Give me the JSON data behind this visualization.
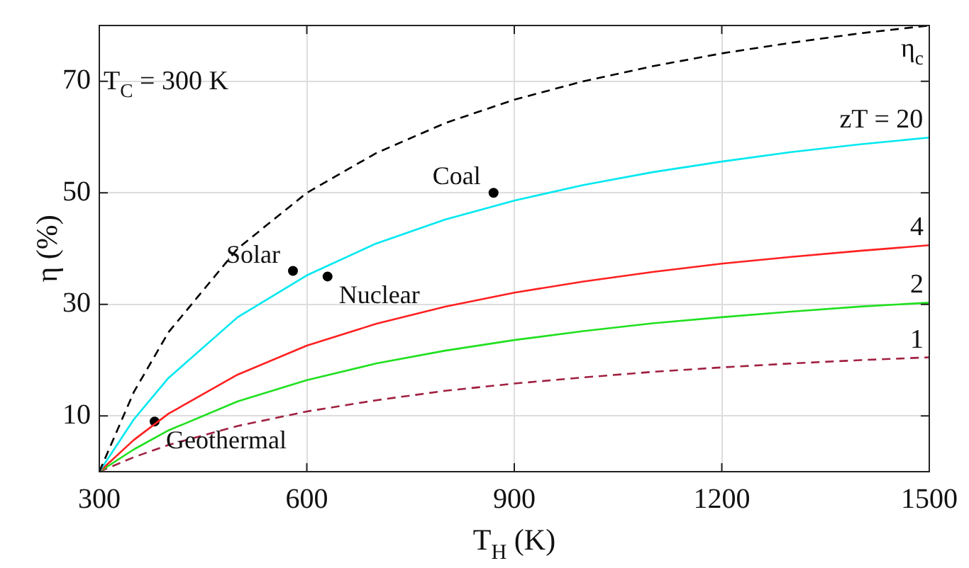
{
  "chart_data": {
    "type": "line",
    "xlabel": "T$_{H}$ (K)",
    "ylabel": "η (%)",
    "x": [
      300,
      350,
      400,
      500,
      600,
      700,
      800,
      900,
      1000,
      1100,
      1200,
      1300,
      1400,
      1500
    ],
    "series": [
      {
        "name": "η$_{c}$",
        "color": "#000000",
        "line_style": "dashed",
        "values": [
          0,
          14.3,
          25,
          40,
          50,
          57.1,
          62.5,
          66.7,
          70,
          72.7,
          75,
          76.9,
          78.6,
          80
        ]
      },
      {
        "name": "zT = 20",
        "color": "#00e8f0",
        "line_style": "solid",
        "values": [
          0,
          9.4,
          16.8,
          27.7,
          35.2,
          40.9,
          45.2,
          48.6,
          51.4,
          53.7,
          55.6,
          57.3,
          58.7,
          59.9
        ]
      },
      {
        "name": "4",
        "color": "#ff2020",
        "line_style": "solid",
        "values": [
          0,
          5.7,
          10.4,
          17.4,
          22.6,
          26.5,
          29.6,
          32.1,
          34.1,
          35.8,
          37.3,
          38.5,
          39.6,
          40.6
        ]
      },
      {
        "name": "2",
        "color": "#20e020",
        "line_style": "solid",
        "values": [
          0,
          4.0,
          7.4,
          12.6,
          16.4,
          19.4,
          21.7,
          23.6,
          25.2,
          26.6,
          27.7,
          28.7,
          29.6,
          30.3
        ]
      },
      {
        "name": "1",
        "color": "#a02040",
        "line_style": "dashed",
        "values": [
          0,
          2.6,
          4.8,
          8.2,
          10.8,
          12.8,
          14.5,
          15.8,
          16.9,
          17.9,
          18.7,
          19.4,
          20.0,
          20.5
        ]
      },
      {
        "type": "scatter",
        "color": "#000000",
        "marker": "circle",
        "x": [
          580,
          630,
          870,
          380
        ],
        "values": [
          36,
          35,
          50,
          9
        ]
      }
    ],
    "annotations": [
      {
        "text": "Solar",
        "x": 580,
        "y": 36
      },
      {
        "text": "Nuclear",
        "x": 630,
        "y": 35
      },
      {
        "text": "Coal",
        "x": 870,
        "y": 50
      },
      {
        "text": "Geothermal",
        "x": 380,
        "y": 9
      },
      "T$_{C}$ = 300 K"
    ],
    "xlim": [
      300,
      1500
    ],
    "xticks": [
      300,
      600,
      900,
      1200,
      1500
    ],
    "ylim": [
      0,
      80
    ],
    "yticks": [
      10,
      30,
      50,
      70
    ],
    "grid": true,
    "legend": false,
    "marker": "none"
  }
}
